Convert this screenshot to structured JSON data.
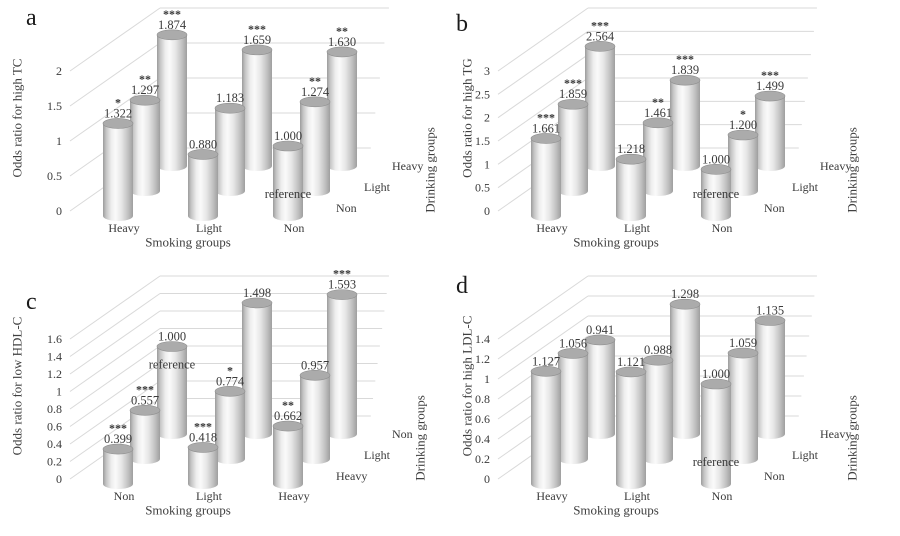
{
  "colors": {
    "background": "#ffffff",
    "gridline": "#d9d9d9",
    "text": "#404040",
    "data_label": "#3a3a3a",
    "cylinder_edge_dark": "#9b9b9b",
    "cylinder_mid": "#c3c3c3",
    "cylinder_highlight": "#fafafa",
    "cylinder_shade": "#c0c0c0",
    "cylinder_cap": "#ababab",
    "cylinder_cap_rim": "#8f8f8f"
  },
  "chart_data": [
    {
      "panel": "a",
      "type": "bar",
      "subtype": "3d-cylinder",
      "ylabel": "Odds ratio for high TC",
      "xlabel": "Smoking groups",
      "zlabel": "Drinking groups",
      "categories": [
        "Heavy",
        "Light",
        "Non"
      ],
      "depth_categories_front_to_back": [
        "Non",
        "Light",
        "Heavy"
      ],
      "yticks": [
        "0",
        "0.5",
        "1",
        "1.5",
        "2"
      ],
      "ylim": [
        0,
        2.5
      ],
      "grid": true,
      "series": [
        {
          "name": "Non",
          "values": [
            1.322,
            0.88,
            1.0
          ],
          "sig": [
            "*",
            "",
            ""
          ]
        },
        {
          "name": "Light",
          "values": [
            1.297,
            1.183,
            1.274
          ],
          "sig": [
            "**",
            "",
            "**"
          ]
        },
        {
          "name": "Heavy",
          "values": [
            1.874,
            1.659,
            1.63
          ],
          "sig": [
            "***",
            "***",
            "**"
          ]
        }
      ],
      "reference": {
        "label": "reference",
        "series": 0,
        "index": 2
      }
    },
    {
      "panel": "b",
      "type": "bar",
      "subtype": "3d-cylinder",
      "ylabel": "Odds ratio for high TG",
      "xlabel": "Smoking groups",
      "zlabel": "Drinking groups",
      "categories": [
        "Heavy",
        "Light",
        "Non"
      ],
      "depth_categories_front_to_back": [
        "Non",
        "Light",
        "Heavy"
      ],
      "yticks": [
        "0",
        "0.5",
        "1",
        "1.5",
        "2",
        "2.5",
        "3"
      ],
      "ylim": [
        0,
        3.5
      ],
      "grid": true,
      "series": [
        {
          "name": "Non",
          "values": [
            1.661,
            1.218,
            1.0
          ],
          "sig": [
            "***",
            "",
            ""
          ]
        },
        {
          "name": "Light",
          "values": [
            1.859,
            1.461,
            1.2
          ],
          "sig": [
            "***",
            "**",
            "*"
          ]
        },
        {
          "name": "Heavy",
          "values": [
            2.564,
            1.839,
            1.499
          ],
          "sig": [
            "***",
            "***",
            "***"
          ]
        }
      ],
      "reference": {
        "label": "reference",
        "series": 0,
        "index": 2
      }
    },
    {
      "panel": "c",
      "type": "bar",
      "subtype": "3d-cylinder",
      "ylabel": "Odds ratio for low HDL-C",
      "xlabel": "Smoking groups",
      "zlabel": "Drinking groups",
      "categories": [
        "Non",
        "Light",
        "Heavy"
      ],
      "depth_categories_front_to_back": [
        "Heavy",
        "Light",
        "Non"
      ],
      "yticks": [
        "0",
        "0.2",
        "0.4",
        "0.6",
        "0.8",
        "1",
        "1.2",
        "1.4",
        "1.6"
      ],
      "ylim": [
        0,
        1.8
      ],
      "grid": true,
      "series": [
        {
          "name": "Heavy",
          "values": [
            0.399,
            0.418,
            0.662
          ],
          "sig": [
            "***",
            "***",
            "**"
          ]
        },
        {
          "name": "Light",
          "values": [
            0.557,
            0.774,
            0.957
          ],
          "sig": [
            "***",
            "*",
            ""
          ]
        },
        {
          "name": "Non",
          "values": [
            1.0,
            1.498,
            1.593
          ],
          "sig": [
            "",
            "",
            "***"
          ]
        }
      ],
      "reference": {
        "label": "reference",
        "series": 2,
        "index": 0
      }
    },
    {
      "panel": "d",
      "type": "bar",
      "subtype": "3d-cylinder",
      "ylabel": "Odds ratio for high LDL-C",
      "xlabel": "Smoking groups",
      "zlabel": "Drinking groups",
      "categories": [
        "Heavy",
        "Light",
        "Non"
      ],
      "depth_categories_front_to_back": [
        "Non",
        "Light",
        "Heavy"
      ],
      "yticks": [
        "0",
        "0.2",
        "0.4",
        "0.6",
        "0.8",
        "1",
        "1.2",
        "1.4"
      ],
      "ylim": [
        0,
        1.6
      ],
      "grid": true,
      "series": [
        {
          "name": "Non",
          "values": [
            1.127,
            1.121,
            1.0
          ],
          "sig": [
            "",
            "",
            ""
          ]
        },
        {
          "name": "Light",
          "values": [
            1.056,
            0.988,
            1.059
          ],
          "sig": [
            "",
            "",
            ""
          ]
        },
        {
          "name": "Heavy",
          "values": [
            0.941,
            1.298,
            1.135
          ],
          "sig": [
            "",
            "",
            ""
          ]
        }
      ],
      "reference": {
        "label": "reference",
        "series": 0,
        "index": 2
      }
    }
  ]
}
